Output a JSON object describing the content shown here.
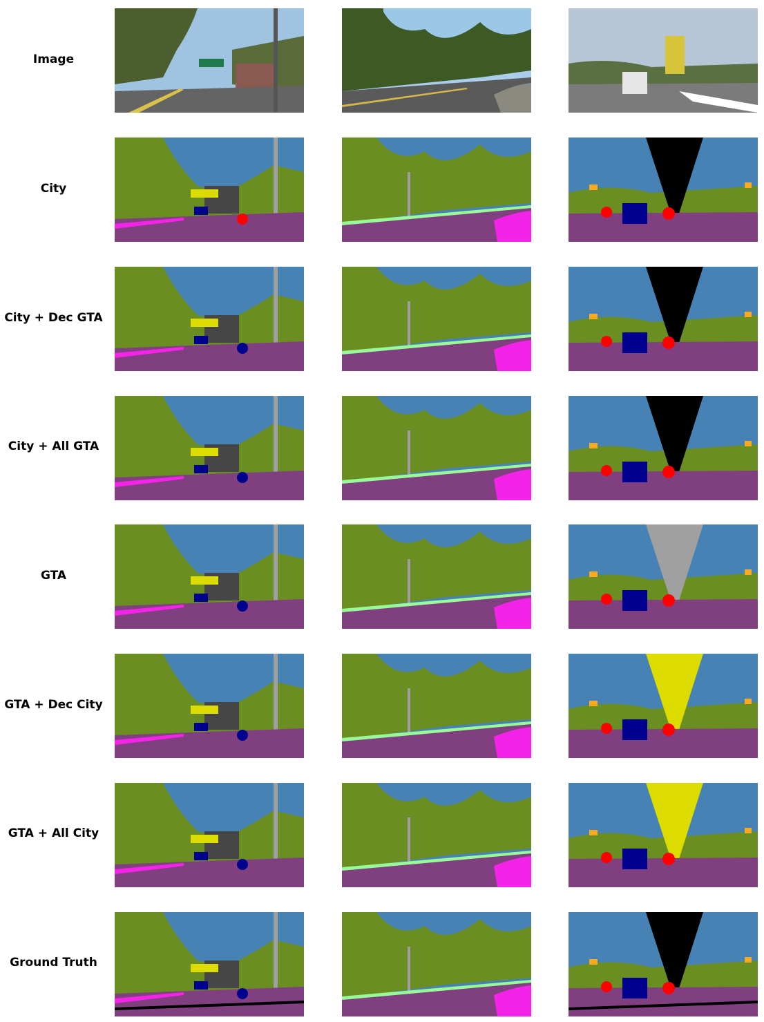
{
  "rows": [
    {
      "label": "Image",
      "kind": "photo"
    },
    {
      "label": "City",
      "kind": "seg"
    },
    {
      "label": "City + Dec GTA",
      "kind": "seg"
    },
    {
      "label": "City + All GTA",
      "kind": "seg"
    },
    {
      "label": "GTA",
      "kind": "seg"
    },
    {
      "label": "GTA + Dec City",
      "kind": "seg"
    },
    {
      "label": "GTA + All City",
      "kind": "seg"
    },
    {
      "label": "Ground Truth",
      "kind": "seg"
    }
  ],
  "colors": {
    "sky": "#4682b4",
    "vegetation": "#6b8e23",
    "road": "#80407f",
    "sidewalk": "#f423e8",
    "terrain": "#98fb98",
    "pole": "#a0a0a0",
    "building": "#464646",
    "car": "#00008e",
    "person": "#ff0000",
    "traffic_sign": "#dcdc00",
    "traffic_light": "#faaa1e",
    "void": "#000000"
  }
}
